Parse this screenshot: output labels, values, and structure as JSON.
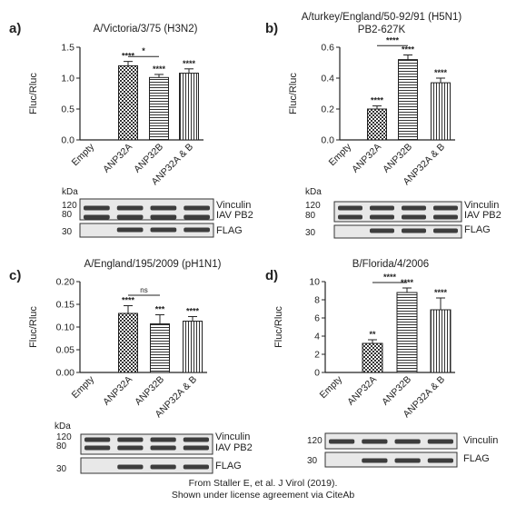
{
  "footer": {
    "line1": "From Staller E, et al. J Virol (2019).",
    "line2": "Shown under license agreement via CiteAb"
  },
  "chart_data": [
    {
      "type": "bar",
      "panel_label": "a)",
      "title": "A/Victoria/3/75 (H3N2)",
      "ylabel": "Fluc/Rluc",
      "ylim": [
        0,
        1.5
      ],
      "yticks": [
        "0.0",
        "0.5",
        "1.0",
        "1.5"
      ],
      "categories": [
        "Empty",
        "ANP32A",
        "ANP32B",
        "ANP32A & B"
      ],
      "values": [
        0.0,
        1.2,
        1.01,
        1.08
      ],
      "errors": [
        0.0,
        0.07,
        0.05,
        0.07
      ],
      "significance": [
        "",
        "****",
        "****",
        "****"
      ],
      "brackets": [
        {
          "from": 1,
          "to": 2,
          "label": "*",
          "y": 1.35
        }
      ],
      "blot": {
        "kda_header": "kDa",
        "markers": [
          {
            "label": "120",
            "row": 0
          },
          {
            "label": "80",
            "row": 1
          },
          {
            "label": "30",
            "row": 2
          }
        ],
        "rows": [
          "Vinculin",
          "IAV PB2",
          "FLAG"
        ]
      }
    },
    {
      "type": "bar",
      "panel_label": "b)",
      "title": "A/turkey/England/50-92/91 (H5N1)",
      "title_line2": "PB2-627K",
      "ylabel": "Fluc/Rluc",
      "ylim": [
        0,
        0.6
      ],
      "yticks": [
        "0.0",
        "0.2",
        "0.4",
        "0.6"
      ],
      "categories": [
        "Empty",
        "ANP32A",
        "ANP32B",
        "ANP32A & B"
      ],
      "values": [
        0.0,
        0.2,
        0.52,
        0.37
      ],
      "errors": [
        0.0,
        0.02,
        0.03,
        0.03
      ],
      "significance": [
        "",
        "****",
        "****",
        "****"
      ],
      "brackets": [
        {
          "from": 1,
          "to": 2,
          "label": "****",
          "y": 0.61
        }
      ],
      "blot": {
        "kda_header": "kDa",
        "markers": [
          {
            "label": "120",
            "row": 0
          },
          {
            "label": "80",
            "row": 1
          },
          {
            "label": "30",
            "row": 2
          }
        ],
        "rows": [
          "Vinculin",
          "IAV PB2",
          "FLAG"
        ]
      }
    },
    {
      "type": "bar",
      "panel_label": "c)",
      "title": "A/England/195/2009 (pH1N1)",
      "ylabel": "Fluc/Rluc",
      "ylim": [
        0,
        0.2
      ],
      "yticks": [
        "0.00",
        "0.05",
        "0.10",
        "0.15",
        "0.20"
      ],
      "categories": [
        "Empty",
        "ANP32A",
        "ANP32B",
        "ANP32A & B"
      ],
      "values": [
        0.0,
        0.13,
        0.107,
        0.113
      ],
      "errors": [
        0.0,
        0.017,
        0.02,
        0.01
      ],
      "significance": [
        "",
        "****",
        "***",
        "****"
      ],
      "brackets": [
        {
          "from": 1,
          "to": 2,
          "label": "ns",
          "y": 0.17
        }
      ],
      "blot": {
        "kda_header": "kDa",
        "markers": [
          {
            "label": "120",
            "row": 0
          },
          {
            "label": "80",
            "row": 1
          },
          {
            "label": "30",
            "row": 2
          }
        ],
        "rows": [
          "Vinculin",
          "IAV PB2",
          "FLAG"
        ]
      }
    },
    {
      "type": "bar",
      "panel_label": "d)",
      "title": "B/Florida/4/2006",
      "ylabel": "Fluc/Rluc",
      "ylim": [
        0,
        10
      ],
      "yticks": [
        "0",
        "2",
        "4",
        "6",
        "8",
        "10"
      ],
      "categories": [
        "Empty",
        "ANP32A",
        "ANP32B",
        "ANP32A & B"
      ],
      "values": [
        0.0,
        3.2,
        8.8,
        6.9
      ],
      "errors": [
        0.0,
        0.4,
        0.5,
        1.3
      ],
      "significance": [
        "",
        "**",
        "****",
        "****"
      ],
      "brackets": [
        {
          "from": 1,
          "to": 2,
          "label": "****",
          "y": 9.9
        }
      ],
      "blot": {
        "kda_header": "",
        "markers": [
          {
            "label": "120",
            "row": 0
          },
          {
            "label": "30",
            "row": 1
          }
        ],
        "rows": [
          "Vinculin",
          "FLAG"
        ]
      }
    }
  ]
}
